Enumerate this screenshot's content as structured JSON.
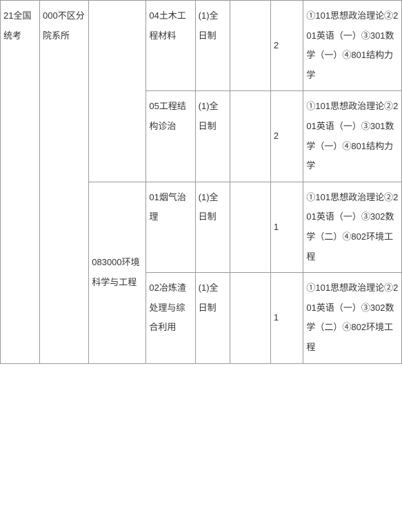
{
  "table": {
    "col1": "21全国统考",
    "col2": "000不区分院系所",
    "majors": {
      "env": "083000环境科学与工程"
    },
    "rows": [
      {
        "direction": "04土木工程材料",
        "mode": "(1)全日制",
        "blank": "",
        "count": "2",
        "subjects": "①101思想政治理论②201英语（一）③301数学（一）④801结构力学"
      },
      {
        "direction": "05工程结构诊治",
        "mode": "(1)全日制",
        "blank": "",
        "count": "2",
        "subjects": "①101思想政治理论②201英语（一）③301数学（一）④801结构力学"
      },
      {
        "direction": "01烟气治理",
        "mode": "(1)全日制",
        "blank": "",
        "count": "1",
        "subjects": "①101思想政治理论②201英语（一）③302数学（二）④802环境工程"
      },
      {
        "direction": "02冶炼渣处理与综合利用",
        "mode": "(1)全日制",
        "blank": "",
        "count": "1",
        "subjects": "①101思想政治理论②201英语（一）③302数学（二）④802环境工程"
      }
    ]
  },
  "style": {
    "border_color": "#999999",
    "text_color": "#333333",
    "background": "#ffffff",
    "font_size": 13,
    "line_height": 2.2
  }
}
